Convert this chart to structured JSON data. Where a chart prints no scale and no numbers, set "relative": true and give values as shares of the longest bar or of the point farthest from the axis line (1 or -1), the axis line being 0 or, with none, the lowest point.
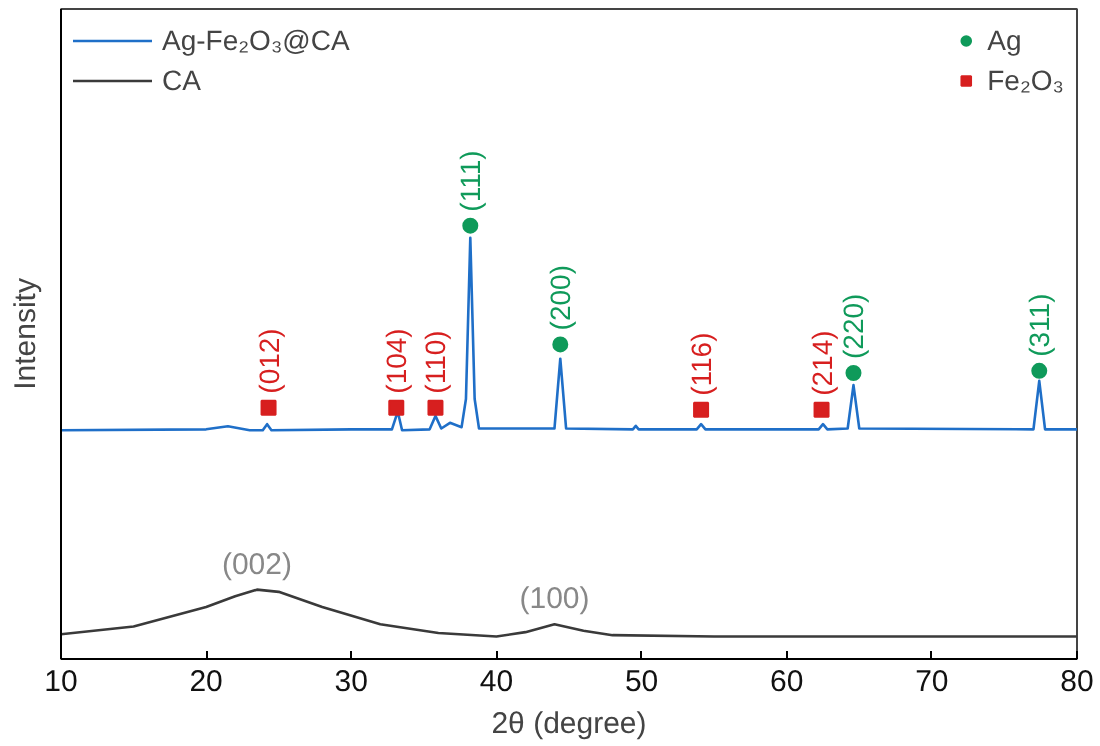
{
  "chart_data": {
    "type": "line",
    "relative": true,
    "xlabel": "2θ (degree)",
    "ylabel": "Intensity",
    "xlim": [
      10,
      80
    ],
    "xticks": [
      10,
      20,
      30,
      40,
      50,
      60,
      70,
      80
    ],
    "grid": false,
    "legend": "top left",
    "marker": "none",
    "line_style": "solid",
    "series": [
      {
        "name": "Ag-Fe₂O₃@CA",
        "color": "#1f6fc8",
        "x": [
          10,
          20,
          21.5,
          23,
          23.9,
          24.2,
          24.5,
          30,
          32.8,
          33.2,
          33.5,
          35.4,
          35.8,
          36.2,
          36.8,
          37.6,
          37.9,
          38.2,
          38.5,
          38.8,
          44.0,
          44.4,
          44.8,
          49.4,
          49.6,
          49.8,
          53.8,
          54.1,
          54.4,
          62.2,
          62.5,
          62.8,
          64.2,
          64.6,
          65.0,
          77.0,
          77.4,
          77.8,
          80
        ],
        "values": [
          0.528,
          0.53,
          0.537,
          0.528,
          0.528,
          0.542,
          0.528,
          0.53,
          0.53,
          0.571,
          0.528,
          0.53,
          0.561,
          0.532,
          0.545,
          0.535,
          0.6,
          0.972,
          0.6,
          0.532,
          0.532,
          0.693,
          0.532,
          0.53,
          0.538,
          0.53,
          0.53,
          0.542,
          0.53,
          0.53,
          0.542,
          0.53,
          0.532,
          0.632,
          0.532,
          0.53,
          0.642,
          0.53,
          0.53
        ]
      },
      {
        "name": "CA",
        "color": "#3a3a3a",
        "x": [
          10,
          15,
          20,
          22,
          23.5,
          25,
          28,
          32,
          36,
          40,
          42,
          44,
          46,
          48,
          55,
          80
        ],
        "values": [
          0.057,
          0.075,
          0.12,
          0.145,
          0.16,
          0.155,
          0.12,
          0.08,
          0.06,
          0.052,
          0.062,
          0.08,
          0.065,
          0.055,
          0.052,
          0.052
        ]
      },
      {
        "name": "Ag",
        "type": "scatter",
        "marker": "circle",
        "color": "#0f9a5a",
        "x": [
          38.2,
          44.4,
          64.6,
          77.4
        ],
        "values": [
          1.0,
          0.726,
          0.66,
          0.665
        ]
      },
      {
        "name": "Fe₂O₃",
        "type": "scatter",
        "marker": "square",
        "color": "#d71f1f",
        "x": [
          24.3,
          33.1,
          35.8,
          54.1,
          62.4
        ],
        "values": [
          0.58,
          0.58,
          0.58,
          0.575,
          0.575
        ]
      }
    ],
    "annotations": [
      {
        "text": "(002)",
        "x": 23.5,
        "y": 0.16
      },
      {
        "text": "(100)",
        "x": 44,
        "y": 0.08
      },
      {
        "text": "(111)",
        "x": 38.2,
        "y": 1.0
      },
      {
        "text": "(200)",
        "x": 44.4,
        "y": 0.726
      },
      {
        "text": "(220)",
        "x": 64.6,
        "y": 0.66
      },
      {
        "text": "(311)",
        "x": 77.4,
        "y": 0.665
      },
      {
        "text": "(012)",
        "x": 24.3,
        "y": 0.58
      },
      {
        "text": "(104)",
        "x": 33.1,
        "y": 0.58
      },
      {
        "text": "(110)",
        "x": 35.8,
        "y": 0.58
      },
      {
        "text": "(116)",
        "x": 54.1,
        "y": 0.575
      },
      {
        "text": "(214)",
        "x": 62.4,
        "y": 0.575
      }
    ]
  }
}
